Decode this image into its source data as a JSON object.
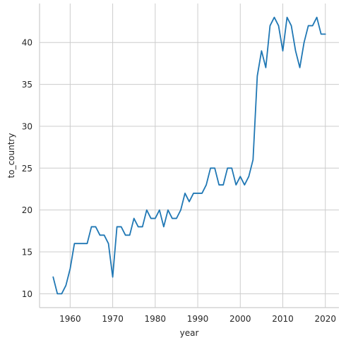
{
  "chart_data": {
    "type": "line",
    "title": "",
    "xlabel": "year",
    "ylabel": "to_country",
    "xlim": [
      1952.8,
      2023.2
    ],
    "ylim": [
      8.35,
      44.65
    ],
    "xticks": [
      1960,
      1970,
      1980,
      1990,
      2000,
      2010,
      2020
    ],
    "yticks": [
      10,
      15,
      20,
      25,
      30,
      35,
      40
    ],
    "grid": true,
    "legend": "none",
    "series": [
      {
        "color": "#1f77b4",
        "x": [
          1956,
          1957,
          1958,
          1959,
          1960,
          1961,
          1962,
          1963,
          1964,
          1965,
          1966,
          1967,
          1968,
          1969,
          1970,
          1971,
          1972,
          1973,
          1974,
          1975,
          1976,
          1977,
          1978,
          1979,
          1980,
          1981,
          1982,
          1983,
          1984,
          1985,
          1986,
          1987,
          1988,
          1989,
          1990,
          1991,
          1992,
          1993,
          1994,
          1995,
          1996,
          1997,
          1998,
          1999,
          2000,
          2001,
          2002,
          2003,
          2004,
          2005,
          2006,
          2007,
          2008,
          2009,
          2010,
          2011,
          2012,
          2013,
          2014,
          2015,
          2016,
          2017,
          2018,
          2019,
          2020
        ],
        "values": [
          12,
          10,
          10,
          11,
          13,
          16,
          16,
          16,
          16,
          18,
          18,
          17,
          17,
          16,
          12,
          18,
          18,
          17,
          17,
          19,
          18,
          18,
          20,
          19,
          19,
          20,
          18,
          20,
          19,
          19,
          20,
          22,
          21,
          22,
          22,
          22,
          23,
          25,
          25,
          23,
          23,
          25,
          25,
          23,
          24,
          23,
          24,
          26,
          36,
          39,
          37,
          42,
          43,
          42,
          39,
          43,
          42,
          39,
          37,
          40,
          42,
          42,
          43,
          41,
          41
        ]
      }
    ]
  }
}
